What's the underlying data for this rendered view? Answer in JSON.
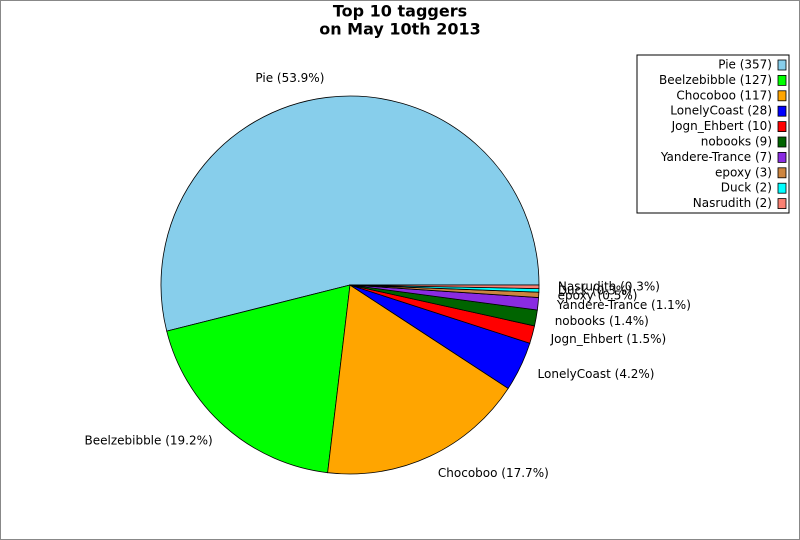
{
  "chart_data": {
    "type": "pie",
    "title": "Top 10 taggers",
    "subtitle": "on May 10th 2013",
    "categories": [
      "Pie",
      "Beelzebibble",
      "Chocoboo",
      "LonelyCoast",
      "Jogn_Ehbert",
      "nobooks",
      "Yandere-Trance",
      "epoxy",
      "Duck",
      "Nasrudith"
    ],
    "values": [
      357,
      127,
      117,
      28,
      10,
      9,
      7,
      3,
      2,
      2
    ],
    "value_labels": [
      "Pie (53.9%)",
      "Beelzebibble (19.2%)",
      "Chocoboo (17.7%)",
      "LonelyCoast (4.2%)",
      "Jogn_Ehbert (1.5%)",
      "nobooks (1.4%)",
      "Yandere-Trance (1.1%)",
      "epoxy (0.5%)",
      "Duck (0.3%)",
      "Nasrudith (0.3%)"
    ],
    "legend_labels": [
      "Pie (357)",
      "Beelzebibble (127)",
      "Chocoboo (117)",
      "LonelyCoast (28)",
      "Jogn_Ehbert (10)",
      "nobooks (9)",
      "Yandere-Trance (7)",
      "epoxy (3)",
      "Duck (2)",
      "Nasrudith (2)"
    ],
    "colors": [
      "#87ceeb",
      "#00ff00",
      "#ffa500",
      "#0000ff",
      "#ff0000",
      "#006400",
      "#8a2be2",
      "#cd853f",
      "#00ffff",
      "#fa8072"
    ],
    "legend": "upper right"
  }
}
